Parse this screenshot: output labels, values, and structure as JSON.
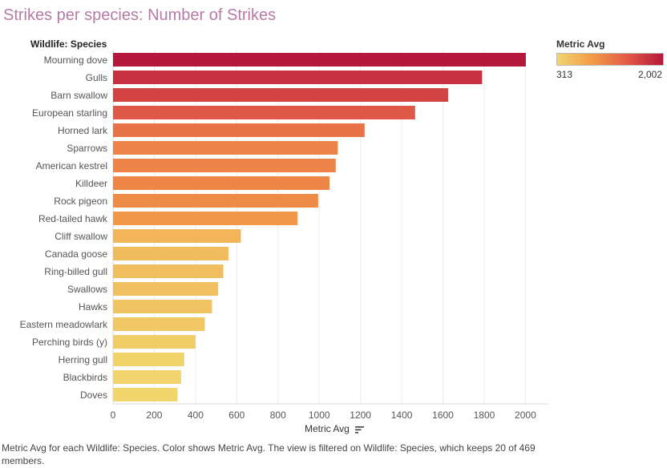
{
  "title": "Strikes per species: Number of Strikes",
  "row_header": "Wildlife: Species",
  "axis_title": "Metric Avg",
  "legend": {
    "title": "Metric Avg",
    "min_label": "313",
    "max_label": "2,002",
    "colors": [
      "#f1d66e",
      "#f29a48",
      "#e15a45",
      "#b5173d"
    ]
  },
  "caption": "Metric Avg for each Wildlife: Species.  Color shows Metric Avg. The view is filtered on Wildlife: Species, which keeps 20 of 469 members.",
  "chart_data": {
    "type": "bar",
    "orientation": "horizontal",
    "categories": [
      "Mourning dove",
      "Gulls",
      "Barn swallow",
      "European starling",
      "Horned lark",
      "Sparrows",
      "American kestrel",
      "Killdeer",
      "Rock pigeon",
      "Red-tailed hawk",
      "Cliff swallow",
      "Canada goose",
      "Ring-billed gull",
      "Swallows",
      "Hawks",
      "Eastern meadowlark",
      "Perching birds (y)",
      "Herring gull",
      "Blackbirds",
      "Doves"
    ],
    "values": [
      2002,
      1790,
      1625,
      1465,
      1220,
      1090,
      1080,
      1050,
      995,
      895,
      620,
      560,
      535,
      510,
      480,
      445,
      400,
      345,
      330,
      313
    ],
    "xlim": [
      0,
      2100
    ],
    "xticks": [
      0,
      200,
      400,
      600,
      800,
      1000,
      1200,
      1400,
      1600,
      1800,
      2000
    ],
    "xlabel": "Metric Avg",
    "grid": "vertical",
    "legend_position": "top-right",
    "color_scale": {
      "min": 313,
      "max": 2002
    }
  }
}
